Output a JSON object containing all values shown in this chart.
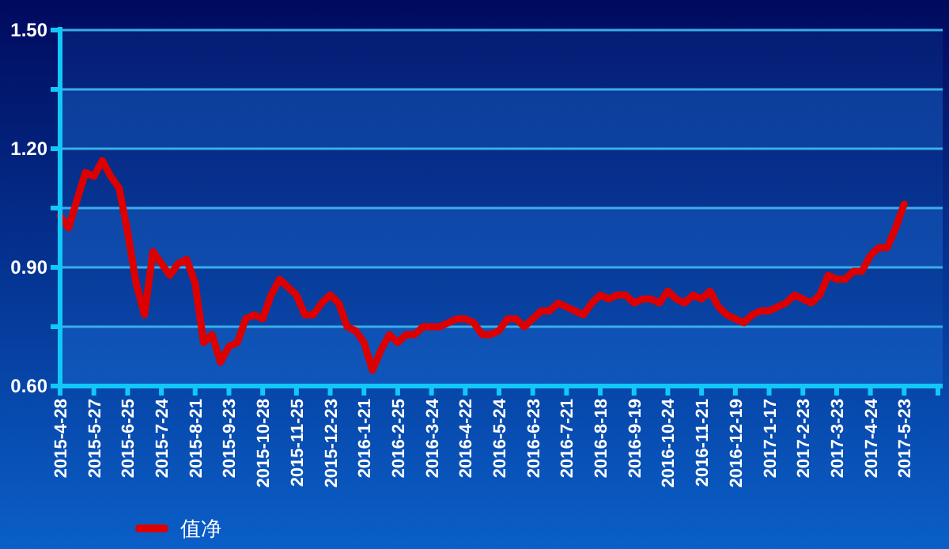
{
  "chart_data": {
    "type": "line",
    "categories": [
      "2015-4-28",
      null,
      null,
      null,
      "2015-5-27",
      null,
      null,
      null,
      "2015-6-25",
      null,
      null,
      null,
      "2015-7-24",
      null,
      null,
      null,
      "2015-8-21",
      null,
      null,
      null,
      "2015-9-23",
      null,
      null,
      null,
      "2015-10-28",
      null,
      null,
      null,
      "2015-11-25",
      null,
      null,
      null,
      "2015-12-23",
      null,
      null,
      null,
      "2016-1-21",
      null,
      null,
      null,
      "2016-2-25",
      null,
      null,
      null,
      "2016-3-24",
      null,
      null,
      null,
      "2016-4-22",
      null,
      null,
      null,
      "2016-5-24",
      null,
      null,
      null,
      "2016-6-23",
      null,
      null,
      null,
      "2016-7-21",
      null,
      null,
      null,
      "2016-8-18",
      null,
      null,
      null,
      "2016-9-19",
      null,
      null,
      null,
      "2016-10-24",
      null,
      null,
      null,
      "2016-11-21",
      null,
      null,
      null,
      "2016-12-19",
      null,
      null,
      null,
      "2017-1-17",
      null,
      null,
      null,
      "2017-2-23",
      null,
      null,
      null,
      "2017-3-23",
      null,
      null,
      null,
      "2017-4-24",
      null,
      null,
      null,
      "2017-5-23",
      null,
      null,
      null,
      null
    ],
    "series": [
      {
        "name": "值净",
        "color": "#dd0000",
        "values": [
          1.03,
          1.0,
          1.07,
          1.14,
          1.13,
          1.17,
          1.13,
          1.1,
          0.99,
          0.86,
          0.78,
          0.94,
          0.91,
          0.88,
          0.91,
          0.92,
          0.86,
          0.71,
          0.73,
          0.66,
          0.7,
          0.71,
          0.77,
          0.78,
          0.77,
          0.83,
          0.87,
          0.85,
          0.83,
          0.78,
          0.78,
          0.81,
          0.83,
          0.81,
          0.75,
          0.74,
          0.71,
          0.64,
          0.69,
          0.73,
          0.71,
          0.73,
          0.73,
          0.75,
          0.75,
          0.75,
          0.76,
          0.77,
          0.77,
          0.76,
          0.73,
          0.73,
          0.74,
          0.77,
          0.77,
          0.75,
          0.77,
          0.79,
          0.79,
          0.81,
          0.8,
          0.79,
          0.78,
          0.81,
          0.83,
          0.82,
          0.83,
          0.83,
          0.81,
          0.82,
          0.82,
          0.81,
          0.84,
          0.82,
          0.81,
          0.83,
          0.82,
          0.84,
          0.8,
          0.78,
          0.77,
          0.76,
          0.78,
          0.79,
          0.79,
          0.8,
          0.81,
          0.83,
          0.82,
          0.81,
          0.83,
          0.88,
          0.87,
          0.87,
          0.89,
          0.89,
          0.93,
          0.95,
          0.95,
          1.0,
          1.06,
          null,
          null,
          null,
          null
        ]
      }
    ],
    "ylim": [
      0.6,
      1.5
    ],
    "yticks": [
      {
        "value": 0.6,
        "label": "0.60"
      },
      {
        "value": 0.75,
        "label": null
      },
      {
        "value": 0.9,
        "label": "0.90"
      },
      {
        "value": 1.05,
        "label": null
      },
      {
        "value": 1.2,
        "label": "1.20"
      },
      {
        "value": 1.35,
        "label": null
      },
      {
        "value": 1.5,
        "label": "1.50"
      }
    ],
    "grid": "y",
    "legend": "bottom left",
    "marker": "none",
    "line_style": "solid"
  }
}
